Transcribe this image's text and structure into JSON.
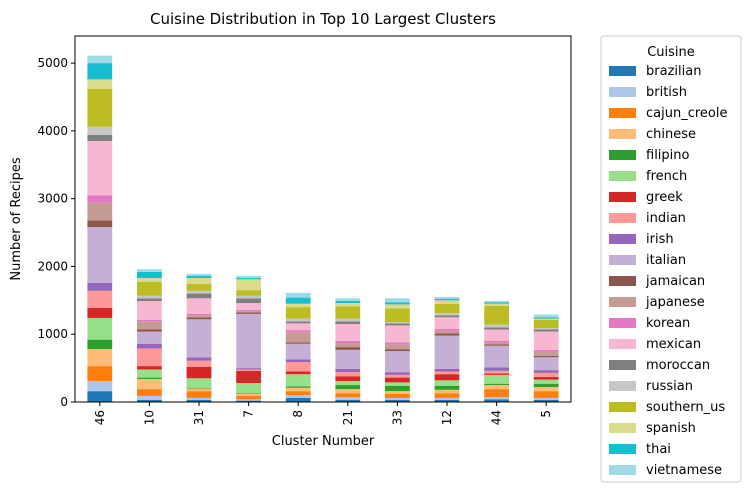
{
  "chart_data": {
    "type": "bar",
    "stacked": true,
    "title": "Cuisine Distribution in Top 10 Largest Clusters",
    "xlabel": "Cluster Number",
    "ylabel": "Number of Recipes",
    "ylim": [
      0,
      5400
    ],
    "yticks": [
      0,
      1000,
      2000,
      3000,
      4000,
      5000
    ],
    "categories": [
      "46",
      "10",
      "31",
      "7",
      "8",
      "21",
      "33",
      "12",
      "44",
      "5"
    ],
    "legend": {
      "title": "Cuisine",
      "placement": "outside-right"
    },
    "series": [
      {
        "name": "brazilian",
        "color": "#1f77b4",
        "values": [
          160,
          30,
          30,
          20,
          60,
          30,
          30,
          30,
          40,
          30
        ]
      },
      {
        "name": "british",
        "color": "#aec7e8",
        "values": [
          150,
          60,
          30,
          20,
          40,
          40,
          30,
          30,
          30,
          30
        ]
      },
      {
        "name": "cajun_creole",
        "color": "#ff7f0e",
        "values": [
          220,
          100,
          100,
          50,
          60,
          60,
          60,
          70,
          120,
          100
        ]
      },
      {
        "name": "chinese",
        "color": "#ffbb78",
        "values": [
          250,
          150,
          40,
          30,
          50,
          60,
          40,
          50,
          60,
          60
        ]
      },
      {
        "name": "filipino",
        "color": "#2ca02c",
        "values": [
          140,
          20,
          10,
          10,
          20,
          60,
          80,
          60,
          20,
          50
        ]
      },
      {
        "name": "french",
        "color": "#98df8a",
        "values": [
          320,
          120,
          140,
          150,
          180,
          60,
          50,
          80,
          130,
          60
        ]
      },
      {
        "name": "greek",
        "color": "#d62728",
        "values": [
          150,
          50,
          170,
          180,
          40,
          70,
          70,
          90,
          20,
          40
        ]
      },
      {
        "name": "indian",
        "color": "#ff9896",
        "values": [
          250,
          260,
          90,
          20,
          140,
          60,
          40,
          40,
          40,
          60
        ]
      },
      {
        "name": "irish",
        "color": "#9467bd",
        "values": [
          120,
          70,
          50,
          20,
          40,
          50,
          40,
          40,
          50,
          40
        ]
      },
      {
        "name": "italian",
        "color": "#c5b0d5",
        "values": [
          820,
          180,
          560,
          800,
          230,
          280,
          310,
          490,
          320,
          190
        ]
      },
      {
        "name": "jamaican",
        "color": "#8c564b",
        "values": [
          100,
          30,
          30,
          20,
          20,
          40,
          30,
          30,
          20,
          20
        ]
      },
      {
        "name": "japanese",
        "color": "#c49c94",
        "values": [
          260,
          120,
          30,
          20,
          150,
          60,
          70,
          40,
          30,
          60
        ]
      },
      {
        "name": "korean",
        "color": "#e377c2",
        "values": [
          110,
          20,
          20,
          20,
          30,
          30,
          30,
          30,
          20,
          30
        ]
      },
      {
        "name": "mexican",
        "color": "#f7b6d2",
        "values": [
          800,
          280,
          230,
          100,
          100,
          250,
          250,
          170,
          170,
          270
        ]
      },
      {
        "name": "moroccan",
        "color": "#7f7f7f",
        "values": [
          90,
          40,
          70,
          70,
          30,
          40,
          30,
          30,
          30,
          30
        ]
      },
      {
        "name": "russian",
        "color": "#c7c7c7",
        "values": [
          120,
          40,
          40,
          40,
          40,
          40,
          20,
          30,
          40,
          20
        ]
      },
      {
        "name": "southern_us",
        "color": "#bcbd22",
        "values": [
          560,
          200,
          100,
          80,
          170,
          180,
          200,
          140,
          280,
          120
        ]
      },
      {
        "name": "spanish",
        "color": "#dbdb8d",
        "values": [
          140,
          60,
          90,
          160,
          50,
          50,
          60,
          50,
          30,
          20
        ]
      },
      {
        "name": "thai",
        "color": "#17becf",
        "values": [
          240,
          90,
          30,
          20,
          90,
          30,
          30,
          20,
          20,
          20
        ]
      },
      {
        "name": "vietnamese",
        "color": "#9edae5",
        "values": [
          110,
          40,
          30,
          30,
          70,
          40,
          60,
          30,
          20,
          40
        ]
      }
    ]
  }
}
